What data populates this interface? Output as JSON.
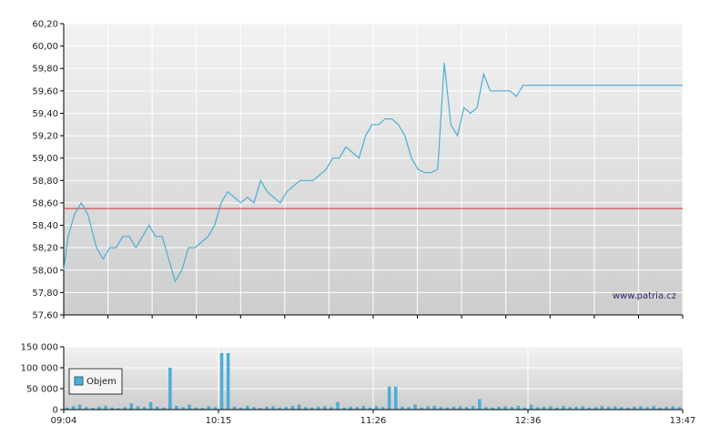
{
  "watermark": "www.patria.cz",
  "legend": {
    "label": "Objem"
  },
  "colors": {
    "line": "#4aaed8",
    "reference": "#cc3333",
    "bars": "#4aaed8",
    "grid": "#ffffff"
  },
  "chart_data": [
    {
      "type": "line",
      "title": "",
      "xlabel": "",
      "ylabel": "",
      "ylim": [
        57.6,
        60.2
      ],
      "yticks": [
        "57,60",
        "57,80",
        "58,00",
        "58,20",
        "58,40",
        "58,60",
        "58,80",
        "59,00",
        "59,20",
        "59,40",
        "59,60",
        "59,80",
        "60,00",
        "60,20"
      ],
      "reference_line": 58.55,
      "grid": true,
      "series": [
        {
          "x": [
            "09:04",
            "09:06",
            "09:09",
            "09:12",
            "09:15",
            "09:19",
            "09:22",
            "09:25",
            "09:28",
            "09:31",
            "09:34",
            "09:37",
            "09:40",
            "09:43",
            "09:46",
            "09:49",
            "09:52",
            "09:55",
            "09:58",
            "10:01",
            "10:04",
            "10:07",
            "10:10",
            "10:13",
            "10:16",
            "10:19",
            "10:22",
            "10:25",
            "10:28",
            "10:31",
            "10:34",
            "10:37",
            "10:40",
            "10:43",
            "10:46",
            "10:49",
            "10:52",
            "10:55",
            "10:58",
            "11:01",
            "11:04",
            "11:07",
            "11:10",
            "11:13",
            "11:16",
            "11:19",
            "11:22",
            "11:25",
            "11:28",
            "11:31",
            "11:34",
            "11:37",
            "11:40",
            "11:43",
            "11:46",
            "11:49",
            "11:52",
            "11:55",
            "11:58",
            "12:01",
            "12:04",
            "12:07",
            "12:10",
            "12:13",
            "12:16",
            "12:19",
            "12:22",
            "12:25",
            "12:28",
            "12:31",
            "12:34",
            "12:37",
            "12:40",
            "12:43",
            "12:46",
            "12:49",
            "12:52",
            "12:55",
            "12:58",
            "13:01",
            "13:04",
            "13:07",
            "13:10",
            "13:13",
            "13:16",
            "13:19",
            "13:22",
            "13:25",
            "13:28",
            "13:31",
            "13:34",
            "13:37",
            "13:40",
            "13:43",
            "13:46",
            "13:47"
          ],
          "y": [
            58.0,
            58.3,
            58.5,
            58.6,
            58.5,
            58.2,
            58.1,
            58.2,
            58.2,
            58.3,
            58.3,
            58.2,
            58.3,
            58.4,
            58.3,
            58.3,
            58.1,
            57.9,
            58.0,
            58.2,
            58.2,
            58.25,
            58.3,
            58.4,
            58.6,
            58.7,
            58.65,
            58.6,
            58.65,
            58.6,
            58.8,
            58.7,
            58.65,
            58.6,
            58.7,
            58.75,
            58.8,
            58.8,
            58.8,
            58.85,
            58.9,
            59.0,
            59.0,
            59.1,
            59.05,
            59.0,
            59.2,
            59.3,
            59.3,
            59.35,
            59.35,
            59.3,
            59.2,
            59.0,
            58.9,
            58.87,
            58.87,
            58.9,
            59.85,
            59.3,
            59.2,
            59.45,
            59.4,
            59.45,
            59.75,
            59.6,
            59.6,
            59.6,
            59.6,
            59.55,
            59.65,
            59.65,
            59.65,
            59.65,
            59.65,
            59.65,
            59.65,
            59.65,
            59.65,
            59.65,
            59.65,
            59.65,
            59.65,
            59.65,
            59.65,
            59.65,
            59.65,
            59.65,
            59.65,
            59.65,
            59.65,
            59.65,
            59.65,
            59.65,
            59.65,
            59.65
          ]
        }
      ]
    },
    {
      "type": "bar",
      "title": "",
      "ylim": [
        0,
        150000
      ],
      "yticks": [
        "0",
        "50 000",
        "100 000",
        "150 000"
      ],
      "xticks": [
        "09:04",
        "10:15",
        "11:26",
        "12:36",
        "13:47"
      ],
      "grid": true,
      "legend": "bottom-left",
      "series": [
        {
          "name": "Objem",
          "values": [
            5000,
            8000,
            12000,
            6000,
            4000,
            7000,
            9000,
            5000,
            3000,
            6000,
            15000,
            8000,
            6000,
            18000,
            7000,
            5000,
            100000,
            9000,
            6000,
            12000,
            5000,
            4000,
            8000,
            6000,
            135000,
            135000,
            7000,
            5000,
            9000,
            6000,
            4000,
            7000,
            8000,
            5000,
            6000,
            9000,
            12000,
            6000,
            5000,
            7000,
            8000,
            6000,
            18000,
            5000,
            7000,
            6000,
            9000,
            5000,
            8000,
            6000,
            55000,
            55000,
            7000,
            6000,
            12000,
            5000,
            8000,
            9000,
            6000,
            5000,
            7000,
            8000,
            6000,
            9000,
            25000,
            6000,
            5000,
            7000,
            8000,
            6000,
            9000,
            5000,
            12000,
            6000,
            7000,
            8000,
            5000,
            9000,
            6000,
            7000,
            8000,
            5000,
            6000,
            9000,
            7000,
            8000,
            6000,
            5000,
            7000,
            8000,
            6000,
            9000,
            5000,
            7000,
            8000,
            6000
          ]
        }
      ]
    }
  ]
}
